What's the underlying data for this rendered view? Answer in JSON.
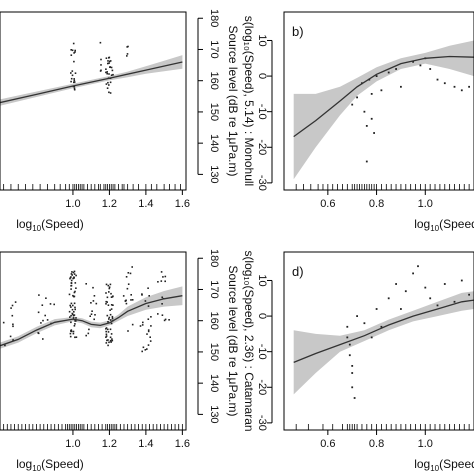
{
  "chart_data": [
    {
      "panel": "a",
      "type": "scatter",
      "xlabel_base": "log",
      "xlabel_sub": "10",
      "xlabel_tail": "(Speed)",
      "ylabel": "Source level (dB re 1μPa.m)",
      "xlim": [
        0.6,
        1.62
      ],
      "ylim": [
        125,
        182
      ],
      "xticks": [
        1.0,
        1.2,
        1.4,
        1.6
      ],
      "xtick_labels": [
        "1.0",
        "1.2",
        "1.4",
        "1.6"
      ],
      "yticks": [
        130,
        140,
        150,
        160,
        170,
        180
      ],
      "ytick_labels": [
        "130",
        "140",
        "150",
        "160",
        "170",
        "180"
      ],
      "fit": {
        "x": [
          0.6,
          0.8,
          1.0,
          1.2,
          1.4,
          1.6
        ],
        "y": [
          153,
          155.6,
          158.3,
          160.8,
          163.4,
          166.0
        ]
      },
      "band": {
        "x": [
          0.6,
          1.0,
          1.2,
          1.3,
          1.4,
          1.5,
          1.6
        ],
        "lo": [
          152,
          157.6,
          160.1,
          161.1,
          162.2,
          163.0,
          163.8
        ],
        "hi": [
          154,
          159.0,
          161.5,
          162.9,
          164.6,
          166.4,
          168.2
        ]
      },
      "groups": [
        {
          "x": 1.0,
          "spread": 0.015,
          "ymin": 154,
          "ymax": 172,
          "n": 22
        },
        {
          "x": 1.15,
          "spread": 0.01,
          "ymin": 162,
          "ymax": 174,
          "n": 5
        },
        {
          "x": 1.2,
          "spread": 0.02,
          "ymin": 156,
          "ymax": 168,
          "n": 28
        },
        {
          "x": 1.3,
          "spread": 0.005,
          "ymin": 166,
          "ymax": 172,
          "n": 4
        }
      ],
      "rug": [
        0.62,
        0.66,
        0.7,
        0.74,
        0.78,
        0.82,
        0.86,
        0.9,
        0.93,
        0.96,
        0.98,
        1.0,
        1.01,
        1.02,
        1.03,
        1.04,
        1.05,
        1.06,
        1.08,
        1.1,
        1.12,
        1.14,
        1.15,
        1.17,
        1.18,
        1.19,
        1.2,
        1.21,
        1.22,
        1.23,
        1.25,
        1.27,
        1.28,
        1.3,
        1.33,
        1.36,
        1.4,
        1.43,
        1.46,
        1.5,
        1.53,
        1.56,
        1.59
      ]
    },
    {
      "panel": "b",
      "panel_label": "b)",
      "type": "scatter",
      "xlabel_base": "log",
      "xlabel_sub": "10",
      "xlabel_tail": "(Speed)",
      "ylabel": "s(log₁₀(Speed), 5.14) : Monohull",
      "xlim": [
        0.42,
        1.2
      ],
      "ylim": [
        -32,
        18
      ],
      "xticks": [
        0.6,
        0.8,
        1.0
      ],
      "xtick_labels": [
        "0.6",
        "0.8",
        "1.0"
      ],
      "yticks": [
        -30,
        -20,
        -10,
        0,
        10
      ],
      "ytick_labels": [
        "-30",
        "-20",
        "-10",
        "0",
        "10"
      ],
      "fit": {
        "x": [
          0.46,
          0.55,
          0.65,
          0.72,
          0.8,
          0.9,
          1.0,
          1.1,
          1.2
        ],
        "y": [
          -17,
          -12.5,
          -7,
          -3,
          0.5,
          3.5,
          5,
          5.5,
          5.3
        ]
      },
      "band": {
        "x": [
          0.46,
          0.55,
          0.65,
          0.72,
          0.8,
          0.9,
          1.0,
          1.1,
          1.2
        ],
        "lo": [
          -29,
          -20,
          -11,
          -5.5,
          -1.5,
          2,
          3.5,
          2,
          0
        ],
        "hi": [
          -5,
          -5,
          -3,
          -0.5,
          2.5,
          5,
          6.5,
          8.5,
          10
        ]
      },
      "points": [
        [
          0.7,
          -8
        ],
        [
          0.72,
          -6
        ],
        [
          0.74,
          -2
        ],
        [
          0.75,
          -10
        ],
        [
          0.76,
          -14
        ],
        [
          0.77,
          -1
        ],
        [
          0.78,
          -5
        ],
        [
          0.78,
          -12
        ],
        [
          0.79,
          -16
        ],
        [
          0.8,
          0
        ],
        [
          0.82,
          -4
        ],
        [
          0.76,
          -24
        ],
        [
          0.85,
          1
        ],
        [
          0.88,
          2
        ],
        [
          0.9,
          -3
        ],
        [
          0.95,
          4
        ],
        [
          0.98,
          3
        ],
        [
          1.0,
          5
        ],
        [
          1.02,
          2
        ],
        [
          1.05,
          -1
        ],
        [
          1.08,
          -2
        ],
        [
          1.12,
          -3
        ],
        [
          1.15,
          -4
        ],
        [
          1.18,
          -3
        ]
      ],
      "rug": [
        0.47,
        0.5,
        0.53,
        0.56,
        0.58,
        0.6,
        0.62,
        0.64,
        0.66,
        0.68,
        0.7,
        0.71,
        0.72,
        0.73,
        0.74,
        0.75,
        0.76,
        0.77,
        0.78,
        0.79,
        0.8,
        0.82,
        0.84,
        0.86,
        0.88,
        0.9,
        0.92,
        0.94,
        0.96,
        0.98,
        1.0,
        1.02,
        1.04,
        1.06,
        1.08,
        1.1,
        1.12,
        1.14,
        1.16,
        1.18
      ]
    },
    {
      "panel": "c",
      "type": "scatter",
      "xlabel_base": "log",
      "xlabel_sub": "10",
      "xlabel_tail": "(Speed)",
      "ylabel": "Source level (dB re 1μPa.m)",
      "xlim": [
        0.6,
        1.62
      ],
      "ylim": [
        125,
        182
      ],
      "xticks": [
        1.0,
        1.2,
        1.4,
        1.6
      ],
      "xtick_labels": [
        "1.0",
        "1.2",
        "1.4",
        "1.6"
      ],
      "yticks": [
        130,
        140,
        150,
        160,
        170,
        180
      ],
      "ytick_labels": [
        "130",
        "140",
        "150",
        "160",
        "170",
        "180"
      ],
      "fit": {
        "x": [
          0.6,
          0.7,
          0.8,
          0.9,
          1.0,
          1.05,
          1.1,
          1.15,
          1.2,
          1.25,
          1.3,
          1.4,
          1.5,
          1.6
        ],
        "y": [
          152,
          154,
          157,
          159.5,
          160.5,
          160,
          158.8,
          158.5,
          159.3,
          161,
          163,
          165.5,
          167,
          168
        ]
      },
      "band": {
        "x": [
          0.6,
          0.7,
          0.8,
          0.9,
          1.0,
          1.05,
          1.1,
          1.15,
          1.2,
          1.25,
          1.3,
          1.4,
          1.5,
          1.6
        ],
        "lo": [
          151,
          153,
          156,
          158.5,
          159.8,
          159.2,
          157.9,
          157.6,
          158.5,
          160,
          161.5,
          163.5,
          164.5,
          165
        ],
        "hi": [
          153,
          155,
          158,
          160.5,
          161.2,
          160.8,
          159.7,
          159.4,
          160.1,
          162,
          164.5,
          167.5,
          169.5,
          171
        ]
      },
      "groups": [
        {
          "x": 0.65,
          "spread": 0.06,
          "ymin": 152,
          "ymax": 166,
          "n": 10
        },
        {
          "x": 0.85,
          "spread": 0.05,
          "ymin": 154,
          "ymax": 170,
          "n": 14
        },
        {
          "x": 1.0,
          "spread": 0.02,
          "ymin": 154,
          "ymax": 176,
          "n": 60
        },
        {
          "x": 1.1,
          "spread": 0.03,
          "ymin": 152,
          "ymax": 172,
          "n": 14
        },
        {
          "x": 1.2,
          "spread": 0.02,
          "ymin": 152,
          "ymax": 172,
          "n": 50
        },
        {
          "x": 1.3,
          "spread": 0.03,
          "ymin": 156,
          "ymax": 178,
          "n": 16
        },
        {
          "x": 1.4,
          "spread": 0.03,
          "ymin": 150,
          "ymax": 172,
          "n": 22
        },
        {
          "x": 1.5,
          "spread": 0.04,
          "ymin": 160,
          "ymax": 176,
          "n": 14
        }
      ],
      "rug": [
        0.6,
        0.62,
        0.64,
        0.66,
        0.68,
        0.7,
        0.72,
        0.74,
        0.76,
        0.78,
        0.8,
        0.82,
        0.84,
        0.86,
        0.88,
        0.9,
        0.92,
        0.94,
        0.96,
        0.97,
        0.98,
        0.99,
        1.0,
        1.01,
        1.02,
        1.03,
        1.04,
        1.05,
        1.06,
        1.08,
        1.1,
        1.12,
        1.14,
        1.16,
        1.18,
        1.19,
        1.2,
        1.21,
        1.22,
        1.23,
        1.24,
        1.26,
        1.28,
        1.3,
        1.32,
        1.34,
        1.36,
        1.38,
        1.4,
        1.42,
        1.44,
        1.46,
        1.48,
        1.5,
        1.52,
        1.54,
        1.56,
        1.58,
        1.6
      ]
    },
    {
      "panel": "d",
      "panel_label": "d)",
      "type": "scatter",
      "xlabel_base": "log",
      "xlabel_sub": "10",
      "xlabel_tail": "(Speed)",
      "ylabel": "s(log₁₀(Speed), 2.36) : Catamaran",
      "xlim": [
        0.42,
        1.2
      ],
      "ylim": [
        -32,
        18
      ],
      "xticks": [
        0.6,
        0.8,
        1.0
      ],
      "xtick_labels": [
        "0.6",
        "0.8",
        "1.0"
      ],
      "yticks": [
        -30,
        -20,
        -10,
        0,
        10
      ],
      "ytick_labels": [
        "-30",
        "-20",
        "-10",
        "0",
        "10"
      ],
      "fit": {
        "x": [
          0.46,
          0.55,
          0.65,
          0.75,
          0.85,
          0.95,
          1.05,
          1.15,
          1.2
        ],
        "y": [
          -13,
          -10.5,
          -8,
          -5.5,
          -2.5,
          0,
          2,
          4,
          4.5
        ]
      },
      "band": {
        "x": [
          0.46,
          0.55,
          0.65,
          0.75,
          0.85,
          0.95,
          1.05,
          1.15,
          1.2
        ],
        "lo": [
          -22,
          -16,
          -10,
          -7,
          -4,
          -1.5,
          0,
          1.5,
          2
        ],
        "hi": [
          -4,
          -5,
          -5.5,
          -4,
          -1,
          1.5,
          4,
          6.5,
          7
        ]
      },
      "points": [
        [
          0.68,
          -3
        ],
        [
          0.68,
          -6
        ],
        [
          0.69,
          -8
        ],
        [
          0.69,
          -11
        ],
        [
          0.7,
          -14
        ],
        [
          0.7,
          -16
        ],
        [
          0.7,
          -20
        ],
        [
          0.71,
          -23
        ],
        [
          0.72,
          0
        ],
        [
          0.75,
          -2
        ],
        [
          0.78,
          -6
        ],
        [
          0.8,
          2
        ],
        [
          0.82,
          -3
        ],
        [
          0.85,
          5
        ],
        [
          0.88,
          9
        ],
        [
          0.9,
          2
        ],
        [
          0.92,
          7
        ],
        [
          0.95,
          12
        ],
        [
          0.97,
          14
        ],
        [
          1.0,
          8
        ],
        [
          1.02,
          5
        ],
        [
          1.05,
          3
        ],
        [
          1.08,
          9
        ],
        [
          1.12,
          4
        ],
        [
          1.15,
          10
        ],
        [
          1.18,
          6
        ]
      ],
      "rug": [
        0.47,
        0.52,
        0.58,
        0.62,
        0.66,
        0.68,
        0.69,
        0.7,
        0.71,
        0.72,
        0.74,
        0.76,
        0.78,
        0.8,
        0.82,
        0.84,
        0.86,
        0.88,
        0.9,
        0.92,
        0.94,
        0.96,
        0.98,
        1.0,
        1.02,
        1.04,
        1.06,
        1.08,
        1.1,
        1.12,
        1.14,
        1.16,
        1.18
      ]
    }
  ]
}
